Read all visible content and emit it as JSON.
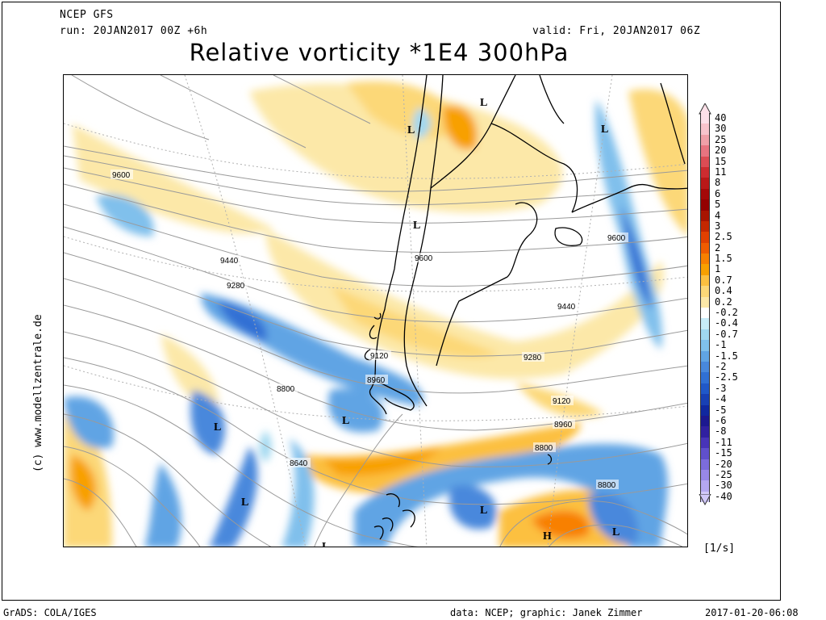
{
  "header": {
    "model": "NCEP GFS",
    "run": "run: 20JAN2017 00Z +6h",
    "valid": "valid: Fri, 20JAN2017 06Z",
    "title": "Relative vorticity *1E4 300hPa"
  },
  "map": {
    "contour_labels": [
      "9600",
      "9440",
      "9280",
      "9120",
      "8960",
      "8800",
      "8640",
      "9600",
      "9440",
      "9280",
      "9120",
      "8960",
      "8800",
      "8800",
      "9600"
    ],
    "pressure_centers": [
      "L",
      "L",
      "L",
      "L",
      "L",
      "L",
      "L",
      "L",
      "L",
      "L",
      "H"
    ]
  },
  "legend": {
    "labels": [
      "40",
      "30",
      "25",
      "20",
      "15",
      "11",
      "8",
      "6",
      "5",
      "4",
      "3",
      "2.5",
      "2",
      "1.5",
      "1",
      "0.7",
      "0.4",
      "0.2",
      "-0.2",
      "-0.4",
      "-0.7",
      "-1",
      "-1.5",
      "-2",
      "-2.5",
      "-3",
      "-4",
      "-5",
      "-6",
      "-8",
      "-11",
      "-15",
      "-20",
      "-25",
      "-30",
      "-40"
    ],
    "colors": [
      "#fce0e8",
      "#f8c4cc",
      "#f0a0a8",
      "#e87480",
      "#dc4c54",
      "#cc2c30",
      "#b81818",
      "#a40808",
      "#940000",
      "#a81400",
      "#c42800",
      "#e04000",
      "#f05c00",
      "#f88000",
      "#f8a000",
      "#fcc040",
      "#fcd878",
      "#fce8a8",
      "#ffffff",
      "#c8ecf8",
      "#a0d8f0",
      "#80c0ec",
      "#60a4e4",
      "#4888dc",
      "#3070d4",
      "#2058c8",
      "#1840b4",
      "#1028a0",
      "#1c1890",
      "#3020a0",
      "#4834b8",
      "#6050cc",
      "#7c6cdc",
      "#9888e8",
      "#b4a8f0",
      "#d0c8f8"
    ],
    "units": "[1/s]"
  },
  "side_credit": "(c) www.modellzentrale.de",
  "footer": {
    "grads": "GrADS: COLA/IGES",
    "data": "data: NCEP; graphic: Janek Zimmer",
    "timestamp": "2017-01-20-06:08"
  }
}
